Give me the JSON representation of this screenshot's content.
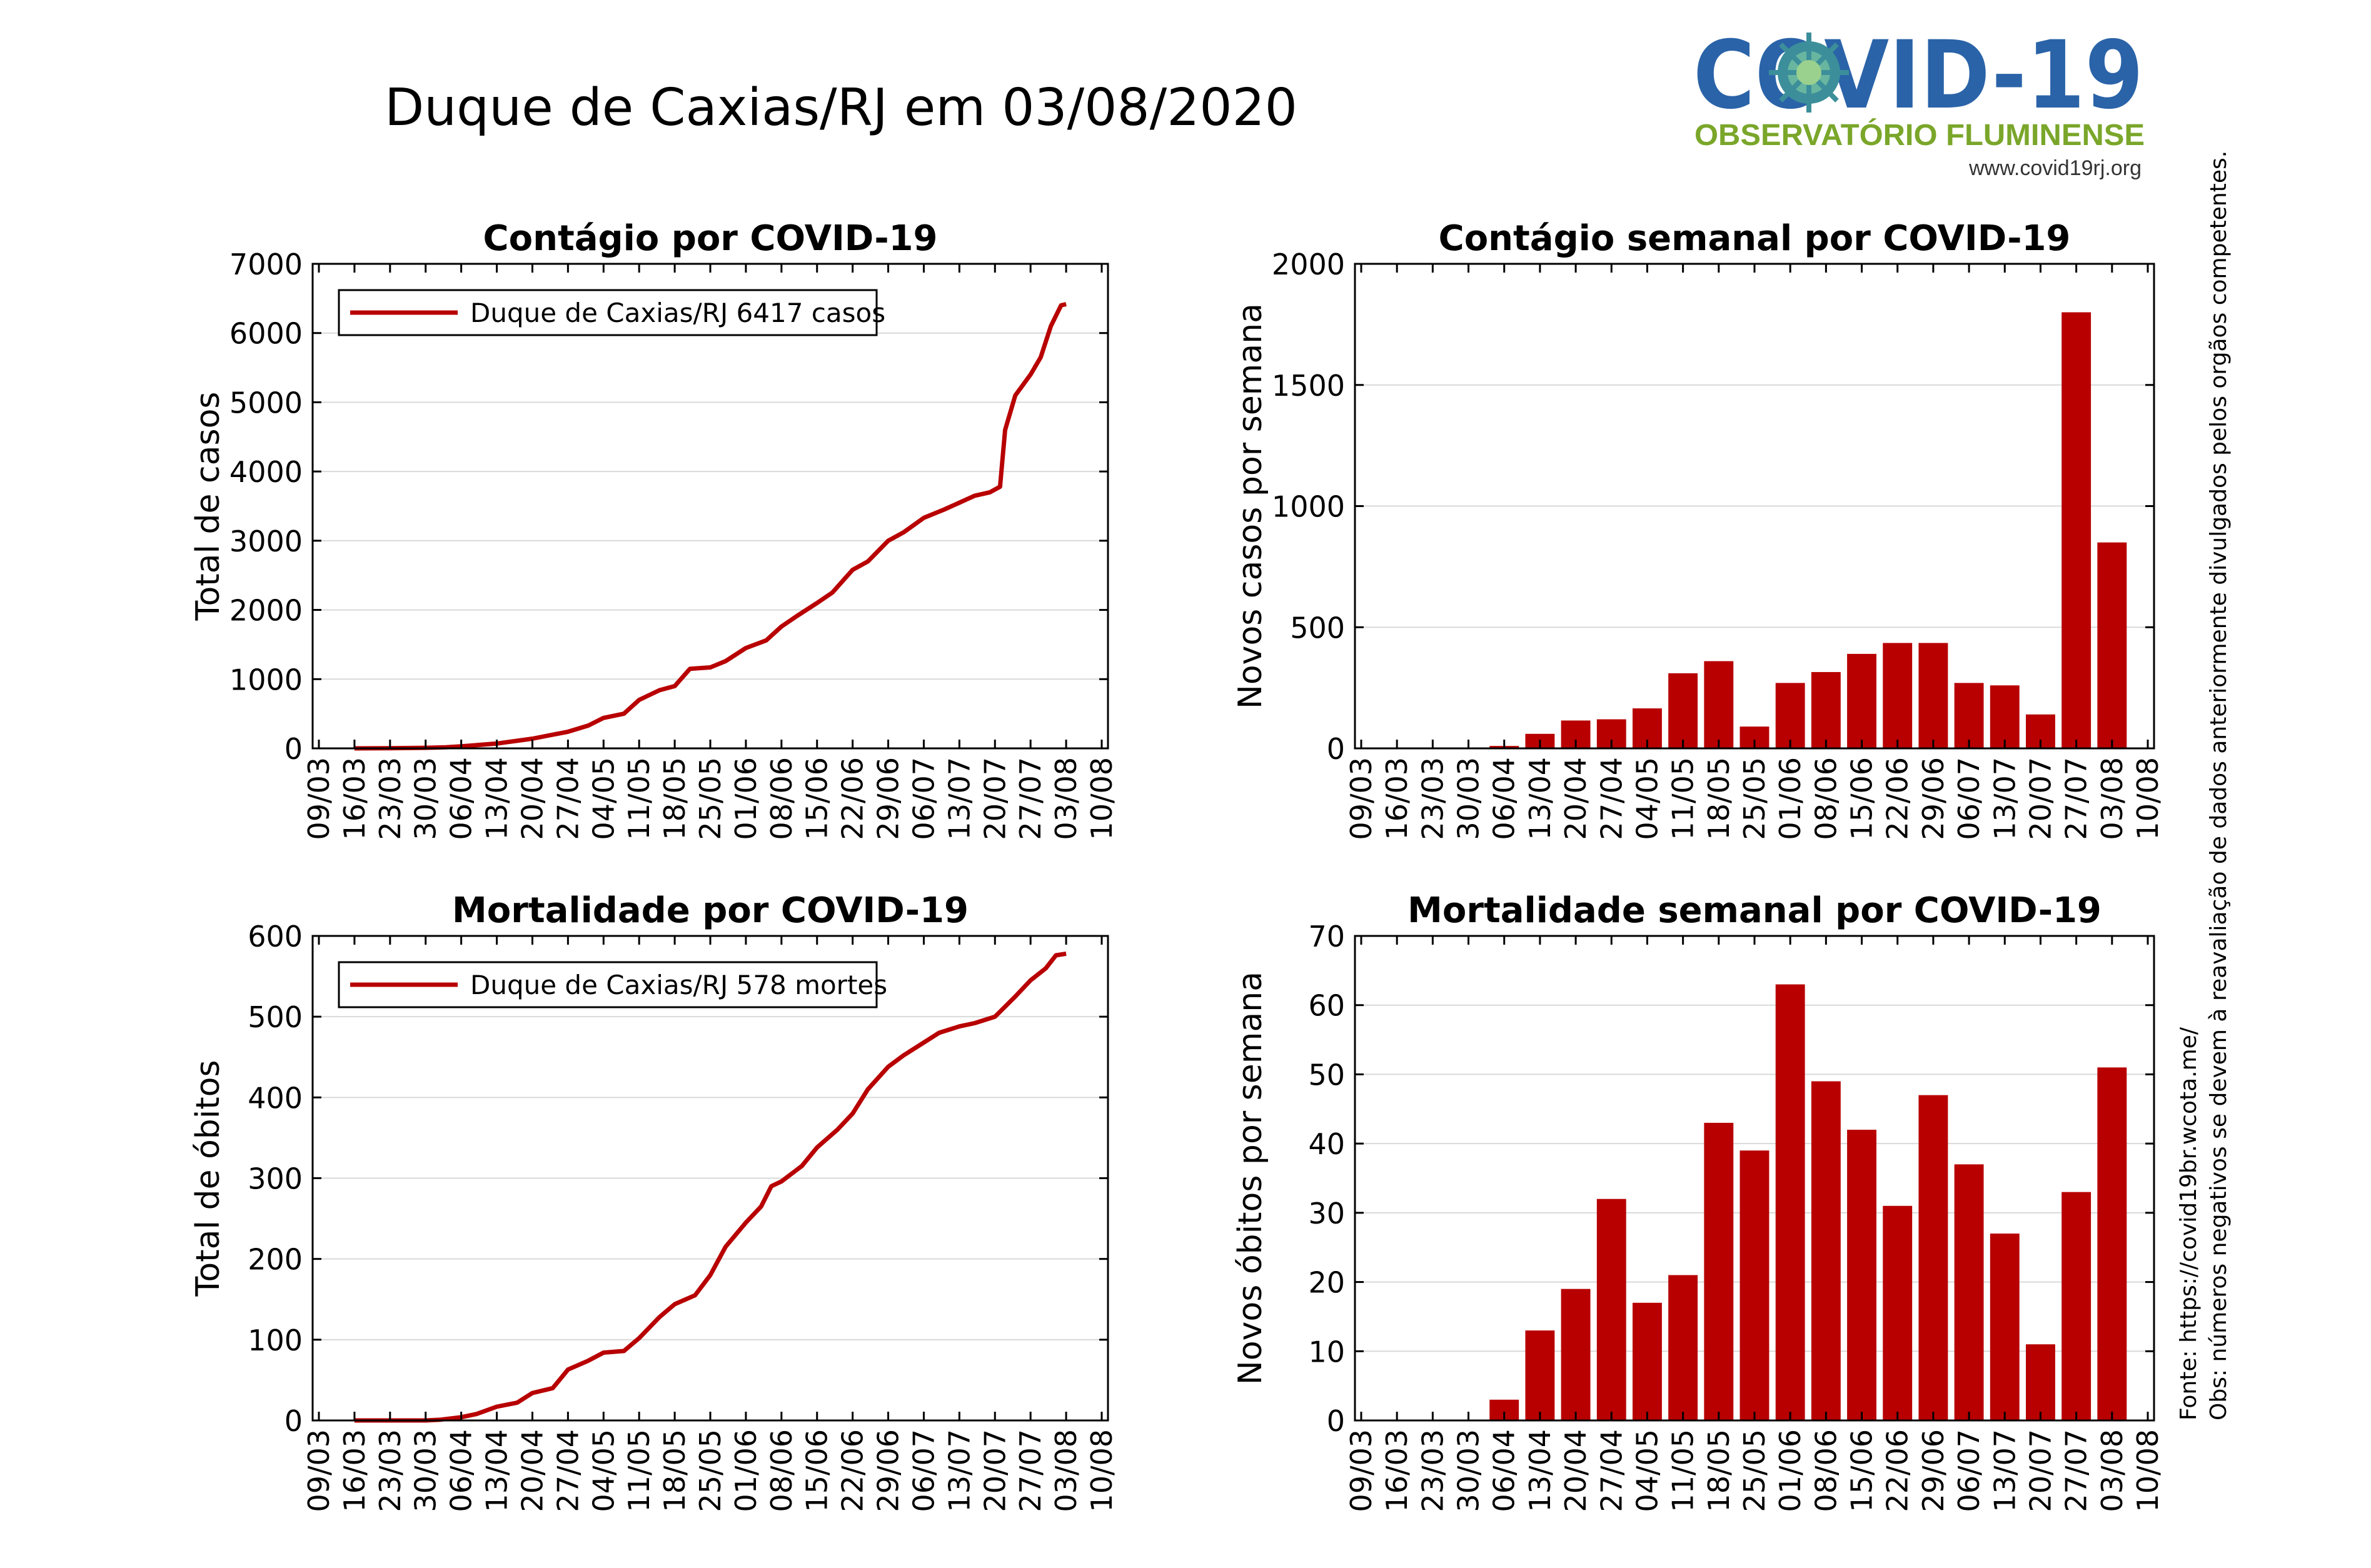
{
  "header": {
    "title": "Duque de Caxias/RJ em 03/08/2020",
    "logo_word": "COVID-19",
    "logo_subtitle": "OBSERVATÓRIO FLUMINENSE",
    "logo_url": "www.covid19rj.org"
  },
  "side_notes": {
    "source": "Fonte: https://covid19br.wcota.me/",
    "note": "Obs: números negativos se devem à reavaliação de dados anteriormente divulgados pelos orgãos competentes."
  },
  "colors": {
    "series": "#b80000",
    "grid": "#d9d9d9",
    "logo_blue": "#2a63a8",
    "logo_green": "#7aa62a"
  },
  "date_ticks": [
    "09/03",
    "16/03",
    "23/03",
    "30/03",
    "06/04",
    "13/04",
    "20/04",
    "27/04",
    "04/05",
    "11/05",
    "18/05",
    "25/05",
    "01/06",
    "08/06",
    "15/06",
    "22/06",
    "29/06",
    "06/07",
    "13/07",
    "20/07",
    "27/07",
    "03/08",
    "10/08"
  ],
  "chart_data": [
    {
      "id": "cases-total",
      "type": "line",
      "title": "Contágio por COVID-19",
      "xlabel": "",
      "ylabel": "Total de casos",
      "ylim": [
        0,
        7000
      ],
      "yticks": [
        0,
        1000,
        2000,
        3000,
        4000,
        5000,
        6000,
        7000
      ],
      "grid": true,
      "legend": "top-left",
      "legend_label": "Duque de Caxias/RJ  6417 casos",
      "x_unit": "date",
      "points": [
        [
          "2020-03-16",
          0
        ],
        [
          "2020-03-23",
          2
        ],
        [
          "2020-03-30",
          8
        ],
        [
          "2020-04-03",
          15
        ],
        [
          "2020-04-06",
          30
        ],
        [
          "2020-04-13",
          70
        ],
        [
          "2020-04-20",
          140
        ],
        [
          "2020-04-27",
          240
        ],
        [
          "2020-05-01",
          330
        ],
        [
          "2020-05-04",
          440
        ],
        [
          "2020-05-08",
          500
        ],
        [
          "2020-05-11",
          700
        ],
        [
          "2020-05-15",
          840
        ],
        [
          "2020-05-18",
          900
        ],
        [
          "2020-05-21",
          1150
        ],
        [
          "2020-05-25",
          1170
        ],
        [
          "2020-05-28",
          1260
        ],
        [
          "2020-06-01",
          1450
        ],
        [
          "2020-06-05",
          1560
        ],
        [
          "2020-06-08",
          1760
        ],
        [
          "2020-06-11",
          1910
        ],
        [
          "2020-06-15",
          2100
        ],
        [
          "2020-06-18",
          2250
        ],
        [
          "2020-06-22",
          2580
        ],
        [
          "2020-06-25",
          2700
        ],
        [
          "2020-06-29",
          3000
        ],
        [
          "2020-07-02",
          3120
        ],
        [
          "2020-07-06",
          3330
        ],
        [
          "2020-07-10",
          3450
        ],
        [
          "2020-07-13",
          3550
        ],
        [
          "2020-07-16",
          3650
        ],
        [
          "2020-07-19",
          3700
        ],
        [
          "2020-07-21",
          3780
        ],
        [
          "2020-07-22",
          4600
        ],
        [
          "2020-07-24",
          5100
        ],
        [
          "2020-07-27",
          5400
        ],
        [
          "2020-07-29",
          5650
        ],
        [
          "2020-07-31",
          6100
        ],
        [
          "2020-08-02",
          6400
        ],
        [
          "2020-08-03",
          6417
        ]
      ]
    },
    {
      "id": "cases-weekly",
      "type": "bar",
      "title": "Contágio semanal por COVID-19",
      "xlabel": "",
      "ylabel": "Novos casos por semana",
      "ylim": [
        0,
        2000
      ],
      "yticks": [
        0,
        500,
        1000,
        1500,
        2000
      ],
      "grid": true,
      "categories": [
        "06/04",
        "13/04",
        "20/04",
        "27/04",
        "04/05",
        "11/05",
        "18/05",
        "25/05",
        "01/06",
        "08/06",
        "15/06",
        "22/06",
        "29/06",
        "06/07",
        "13/07",
        "20/07",
        "27/07",
        "03/08"
      ],
      "values": [
        10,
        60,
        115,
        120,
        165,
        310,
        360,
        90,
        270,
        315,
        390,
        435,
        435,
        270,
        260,
        140,
        1800,
        850
      ]
    },
    {
      "id": "deaths-total",
      "type": "line",
      "title": "Mortalidade por COVID-19",
      "xlabel": "",
      "ylabel": "Total de óbitos",
      "ylim": [
        0,
        600
      ],
      "yticks": [
        0,
        100,
        200,
        300,
        400,
        500,
        600
      ],
      "grid": true,
      "legend": "top-left",
      "legend_label": "Duque de Caxias/RJ  578 mortes",
      "x_unit": "date",
      "points": [
        [
          "2020-03-16",
          0
        ],
        [
          "2020-03-30",
          0
        ],
        [
          "2020-04-02",
          1
        ],
        [
          "2020-04-06",
          4
        ],
        [
          "2020-04-09",
          8
        ],
        [
          "2020-04-13",
          17
        ],
        [
          "2020-04-17",
          22
        ],
        [
          "2020-04-20",
          34
        ],
        [
          "2020-04-24",
          40
        ],
        [
          "2020-04-27",
          63
        ],
        [
          "2020-05-01",
          74
        ],
        [
          "2020-05-04",
          84
        ],
        [
          "2020-05-08",
          86
        ],
        [
          "2020-05-11",
          102
        ],
        [
          "2020-05-15",
          128
        ],
        [
          "2020-05-18",
          144
        ],
        [
          "2020-05-22",
          155
        ],
        [
          "2020-05-25",
          180
        ],
        [
          "2020-05-28",
          215
        ],
        [
          "2020-06-01",
          245
        ],
        [
          "2020-06-04",
          265
        ],
        [
          "2020-06-06",
          290
        ],
        [
          "2020-06-08",
          296
        ],
        [
          "2020-06-12",
          315
        ],
        [
          "2020-06-15",
          338
        ],
        [
          "2020-06-19",
          360
        ],
        [
          "2020-06-22",
          380
        ],
        [
          "2020-06-25",
          410
        ],
        [
          "2020-06-29",
          438
        ],
        [
          "2020-07-02",
          452
        ],
        [
          "2020-07-06",
          468
        ],
        [
          "2020-07-09",
          480
        ],
        [
          "2020-07-13",
          488
        ],
        [
          "2020-07-16",
          492
        ],
        [
          "2020-07-20",
          500
        ],
        [
          "2020-07-24",
          525
        ],
        [
          "2020-07-27",
          545
        ],
        [
          "2020-07-30",
          560
        ],
        [
          "2020-08-01",
          576
        ],
        [
          "2020-08-03",
          578
        ]
      ]
    },
    {
      "id": "deaths-weekly",
      "type": "bar",
      "title": "Mortalidade semanal por COVID-19",
      "xlabel": "",
      "ylabel": "Novos óbitos por semana",
      "ylim": [
        0,
        70
      ],
      "yticks": [
        0,
        10,
        20,
        30,
        40,
        50,
        60,
        70
      ],
      "grid": true,
      "categories": [
        "06/04",
        "13/04",
        "20/04",
        "27/04",
        "04/05",
        "11/05",
        "18/05",
        "25/05",
        "01/06",
        "08/06",
        "15/06",
        "22/06",
        "29/06",
        "06/07",
        "13/07",
        "20/07",
        "27/07",
        "03/08"
      ],
      "values": [
        3,
        13,
        19,
        32,
        17,
        21,
        43,
        39,
        63,
        49,
        42,
        31,
        47,
        37,
        27,
        11,
        33,
        51
      ]
    }
  ]
}
